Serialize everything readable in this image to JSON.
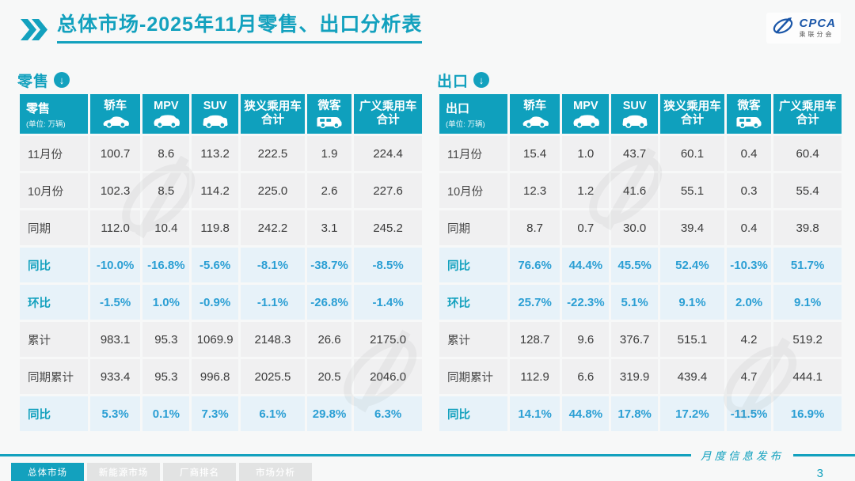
{
  "header": {
    "title": "总体市场-2025年11月零售、出口分析表",
    "logo": {
      "acronym": "CPCA",
      "chinese": "乘联分会"
    }
  },
  "colors": {
    "teal": "#13a1be",
    "header_cell": "#0fa0bd",
    "highlight_row_bg": "#e7f2f9",
    "percent_text": "#2b9fd4",
    "logo_blue": "#1a56a8"
  },
  "tables": [
    {
      "name": "retail",
      "section_label": "零售",
      "corner": {
        "title": "零售",
        "unit": "(单位: 万辆)"
      },
      "columns": [
        {
          "lines": [
            "轿车"
          ],
          "icon": "sedan-icon"
        },
        {
          "lines": [
            "MPV"
          ],
          "icon": "mpv-icon"
        },
        {
          "lines": [
            "SUV"
          ],
          "icon": "suv-icon"
        },
        {
          "lines": [
            "狭义乘用车",
            "合计"
          ],
          "icon": null
        },
        {
          "lines": [
            "微客"
          ],
          "icon": "minivan-icon"
        },
        {
          "lines": [
            "广义乘用车",
            "合计"
          ],
          "icon": null
        }
      ],
      "rows": [
        {
          "label": "11月份",
          "highlight": false,
          "values": [
            "100.7",
            "8.6",
            "113.2",
            "222.5",
            "1.9",
            "224.4"
          ]
        },
        {
          "label": "10月份",
          "highlight": false,
          "values": [
            "102.3",
            "8.5",
            "114.2",
            "225.0",
            "2.6",
            "227.6"
          ]
        },
        {
          "label": "同期",
          "highlight": false,
          "values": [
            "112.0",
            "10.4",
            "119.8",
            "242.2",
            "3.1",
            "245.2"
          ]
        },
        {
          "label": "同比",
          "highlight": true,
          "values": [
            "-10.0%",
            "-16.8%",
            "-5.6%",
            "-8.1%",
            "-38.7%",
            "-8.5%"
          ]
        },
        {
          "label": "环比",
          "highlight": true,
          "values": [
            "-1.5%",
            "1.0%",
            "-0.9%",
            "-1.1%",
            "-26.8%",
            "-1.4%"
          ]
        },
        {
          "label": "累计",
          "highlight": false,
          "values": [
            "983.1",
            "95.3",
            "1069.9",
            "2148.3",
            "26.6",
            "2175.0"
          ]
        },
        {
          "label": "同期累计",
          "highlight": false,
          "values": [
            "933.4",
            "95.3",
            "996.8",
            "2025.5",
            "20.5",
            "2046.0"
          ]
        },
        {
          "label": "同比",
          "highlight": true,
          "values": [
            "5.3%",
            "0.1%",
            "7.3%",
            "6.1%",
            "29.8%",
            "6.3%"
          ]
        }
      ]
    },
    {
      "name": "export",
      "section_label": "出口",
      "corner": {
        "title": "出口",
        "unit": "(单位: 万辆)"
      },
      "columns": [
        {
          "lines": [
            "轿车"
          ],
          "icon": "sedan-icon"
        },
        {
          "lines": [
            "MPV"
          ],
          "icon": "mpv-icon"
        },
        {
          "lines": [
            "SUV"
          ],
          "icon": "suv-icon"
        },
        {
          "lines": [
            "狭义乘用车",
            "合计"
          ],
          "icon": null
        },
        {
          "lines": [
            "微客"
          ],
          "icon": "minivan-icon"
        },
        {
          "lines": [
            "广义乘用车",
            "合计"
          ],
          "icon": null
        }
      ],
      "rows": [
        {
          "label": "11月份",
          "highlight": false,
          "values": [
            "15.4",
            "1.0",
            "43.7",
            "60.1",
            "0.4",
            "60.4"
          ]
        },
        {
          "label": "10月份",
          "highlight": false,
          "values": [
            "12.3",
            "1.2",
            "41.6",
            "55.1",
            "0.3",
            "55.4"
          ]
        },
        {
          "label": "同期",
          "highlight": false,
          "values": [
            "8.7",
            "0.7",
            "30.0",
            "39.4",
            "0.4",
            "39.8"
          ]
        },
        {
          "label": "同比",
          "highlight": true,
          "values": [
            "76.6%",
            "44.4%",
            "45.5%",
            "52.4%",
            "-10.3%",
            "51.7%"
          ]
        },
        {
          "label": "环比",
          "highlight": true,
          "values": [
            "25.7%",
            "-22.3%",
            "5.1%",
            "9.1%",
            "2.0%",
            "9.1%"
          ]
        },
        {
          "label": "累计",
          "highlight": false,
          "values": [
            "128.7",
            "9.6",
            "376.7",
            "515.1",
            "4.2",
            "519.2"
          ]
        },
        {
          "label": "同期累计",
          "highlight": false,
          "values": [
            "112.9",
            "6.6",
            "319.9",
            "439.4",
            "4.7",
            "444.1"
          ]
        },
        {
          "label": "同比",
          "highlight": true,
          "values": [
            "14.1%",
            "44.8%",
            "17.8%",
            "17.2%",
            "-11.5%",
            "16.9%"
          ]
        }
      ]
    }
  ],
  "footer": {
    "tabs": [
      {
        "label": "总体市场",
        "active": true
      },
      {
        "label": "新能源市场",
        "active": false
      },
      {
        "label": "厂商排名",
        "active": false
      },
      {
        "label": "市场分析",
        "active": false
      }
    ],
    "caption": "月度信息发布",
    "page_number": "3"
  }
}
